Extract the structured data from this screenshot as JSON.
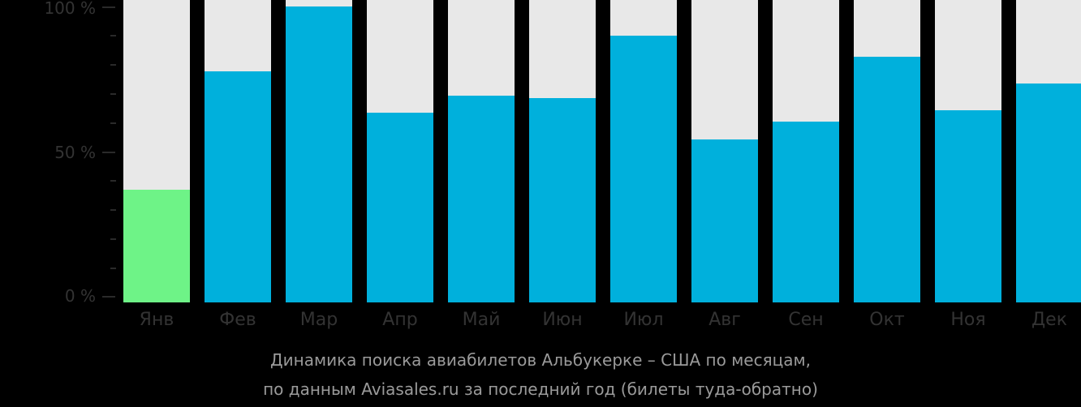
{
  "chart_data": {
    "type": "bar",
    "title": "Динамика поиска авиабилетов Альбукерке – США по месяцам, по данным Aviasales.ru за последний год (билеты туда-обратно)",
    "xlabel": "",
    "ylabel": "",
    "ylim": [
      0,
      100
    ],
    "yticks": [
      "0 %",
      "50 %",
      "100 %"
    ],
    "categories": [
      "Янв",
      "Фев",
      "Мар",
      "Апр",
      "Май",
      "Июн",
      "Июл",
      "Авг",
      "Сен",
      "Окт",
      "Ноя",
      "Дек"
    ],
    "values": [
      38,
      78,
      100,
      64,
      70,
      69,
      90,
      55,
      61,
      83,
      65,
      74
    ],
    "colors": {
      "default": "#00b0dc",
      "lowest": "#6ef387",
      "background_bar": "#e8e8e8"
    },
    "grid": false,
    "legend": null
  },
  "axis": {
    "y100": "100 %",
    "y50": "50 %",
    "y0": "0 %"
  },
  "caption": {
    "line1": "Динамика поиска авиабилетов Альбукерке – США по месяцам,",
    "line2": "по данным Aviasales.ru за последний год (билеты туда-обратно)"
  }
}
